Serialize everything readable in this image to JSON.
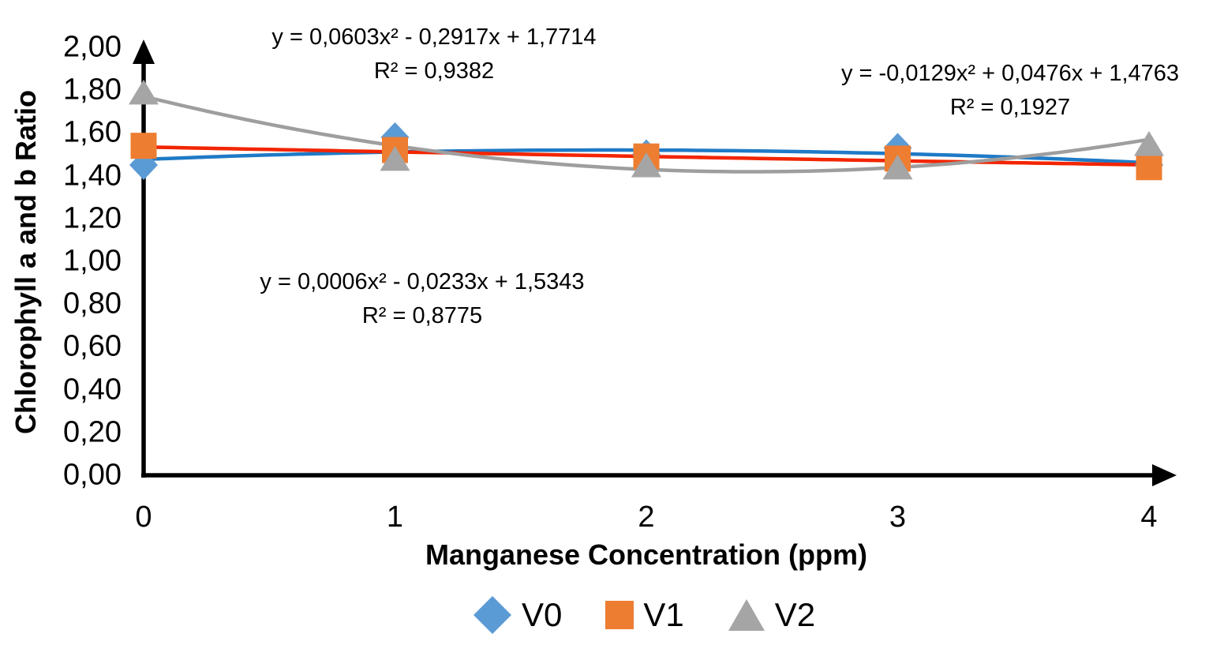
{
  "chart_data": {
    "type": "scatter",
    "title": "",
    "xlabel": "Manganese Concentration (ppm)",
    "ylabel": "Chlorophyll a and b Ratio",
    "xlim": [
      0,
      4
    ],
    "ylim": [
      0,
      2
    ],
    "grid": false,
    "legend_position": "bottom",
    "decimal_separator": ",",
    "axis_color": "#000000",
    "x": [
      0,
      1,
      2,
      3,
      4
    ],
    "x_ticks": [
      {
        "label": "0",
        "value": 0
      },
      {
        "label": "1",
        "value": 1
      },
      {
        "label": "2",
        "value": 2
      },
      {
        "label": "3",
        "value": 3
      },
      {
        "label": "4",
        "value": 4
      }
    ],
    "y_ticks": [
      {
        "label": "0,00",
        "value": 0.0
      },
      {
        "label": "0,20",
        "value": 0.2
      },
      {
        "label": "0,40",
        "value": 0.4
      },
      {
        "label": "0,60",
        "value": 0.6
      },
      {
        "label": "0,80",
        "value": 0.8
      },
      {
        "label": "1,00",
        "value": 1.0
      },
      {
        "label": "1,20",
        "value": 1.2
      },
      {
        "label": "1,40",
        "value": 1.4
      },
      {
        "label": "1,60",
        "value": 1.6
      },
      {
        "label": "1,80",
        "value": 1.8
      },
      {
        "label": "2,00",
        "value": 2.0
      }
    ],
    "series": [
      {
        "name": "V0",
        "marker": "diamond",
        "marker_color": "#5B9BD5",
        "trend_color": "#1F7AC6",
        "values": [
          1.45,
          1.58,
          1.5,
          1.53,
          1.45
        ],
        "trend": {
          "type": "polynomial2",
          "a": -0.0129,
          "b": 0.0476,
          "c": 1.4763
        },
        "equation": "y = -0,0129x² + 0,0476x + 1,4763",
        "r_squared": "R² = 0,1927"
      },
      {
        "name": "V1",
        "marker": "square",
        "marker_color": "#ED7D31",
        "trend_color": "#F22500",
        "values": [
          1.54,
          1.52,
          1.49,
          1.48,
          1.44
        ],
        "trend": {
          "type": "polynomial2",
          "a": 0.0006,
          "b": -0.0233,
          "c": 1.5343
        },
        "equation": "y = 0,0006x² - 0,0233x + 1,5343",
        "r_squared": "R² = 0,8775"
      },
      {
        "name": "V2",
        "marker": "triangle",
        "marker_color": "#A5A5A5",
        "trend_color": "#9E9E9E",
        "values": [
          1.79,
          1.48,
          1.45,
          1.44,
          1.55
        ],
        "trend": {
          "type": "polynomial2",
          "a": 0.0603,
          "b": -0.2917,
          "c": 1.7714
        },
        "equation": "y = 0,0603x² - 0,2917x + 1,7714",
        "r_squared": "R² = 0,9382"
      }
    ]
  }
}
